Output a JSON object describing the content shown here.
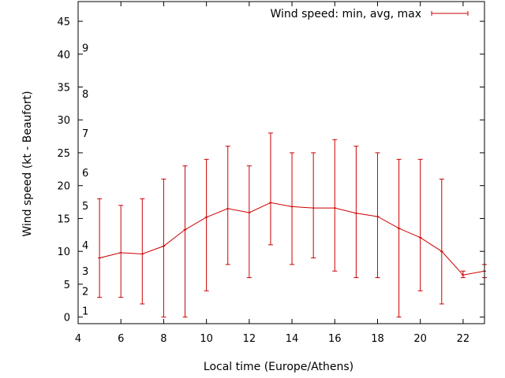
{
  "chart_data": {
    "type": "line",
    "title": "",
    "xlabel": "Local time (Europe/Athens)",
    "ylabel": "Wind speed (kt - Beaufort)",
    "xlim": [
      4,
      23
    ],
    "ylim": [
      -1,
      48
    ],
    "x_ticks": [
      4,
      6,
      8,
      10,
      12,
      14,
      16,
      18,
      20,
      22
    ],
    "y_ticks": [
      0,
      5,
      10,
      15,
      20,
      25,
      30,
      35,
      40,
      45
    ],
    "grid": false,
    "legend": "top-right",
    "color": "#cc0000",
    "series": [
      {
        "name": "Wind speed: min, avg, max",
        "x": [
          5,
          6,
          7,
          8,
          9,
          10,
          11,
          12,
          13,
          14,
          15,
          16,
          17,
          18,
          19,
          20,
          21,
          22,
          23
        ],
        "avg": [
          9.0,
          9.8,
          9.6,
          10.8,
          13.3,
          15.2,
          16.5,
          15.9,
          17.4,
          16.8,
          16.6,
          16.6,
          15.8,
          15.3,
          13.5,
          12.1,
          10.0,
          6.4,
          7.0
        ],
        "min": [
          3,
          3,
          2,
          0,
          0,
          4,
          8,
          6,
          11,
          8,
          9,
          7,
          6,
          6,
          0,
          4,
          2,
          6,
          6
        ],
        "max": [
          18,
          17,
          18,
          21,
          23,
          24,
          26,
          23,
          28,
          25,
          25,
          27,
          26,
          25,
          24,
          24,
          21,
          7,
          8
        ]
      }
    ],
    "beaufort_labels": [
      {
        "label": "1",
        "y": 1
      },
      {
        "label": "2",
        "y": 4
      },
      {
        "label": "3",
        "y": 7
      },
      {
        "label": "4",
        "y": 11
      },
      {
        "label": "5",
        "y": 17
      },
      {
        "label": "6",
        "y": 22
      },
      {
        "label": "7",
        "y": 28
      },
      {
        "label": "8",
        "y": 34
      },
      {
        "label": "9",
        "y": 41
      }
    ]
  }
}
